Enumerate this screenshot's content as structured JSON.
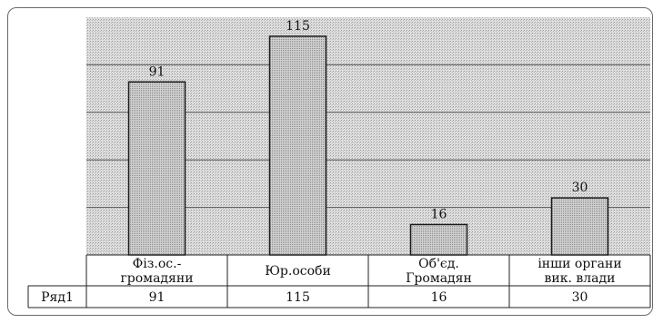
{
  "chart_data": {
    "type": "bar",
    "categories": [
      [
        "Фіз.ос.-",
        "громадяни"
      ],
      [
        "Юр.особи"
      ],
      [
        "Об'єд.",
        "Громадян"
      ],
      [
        "інши органи",
        "вик. влади"
      ]
    ],
    "series": [
      {
        "name": "Ряд1",
        "values": [
          91,
          115,
          16,
          30
        ]
      }
    ],
    "data_labels": [
      "91",
      "115",
      "16",
      "30"
    ],
    "table_values": [
      "91",
      "115",
      "16",
      "30"
    ],
    "ylim": [
      0,
      125
    ],
    "grid": true,
    "data_table": true,
    "colors": {
      "plot_bg": "#d4d4d4",
      "bar": "#c4c4c4",
      "bar_edge": "#1a1a1a",
      "grid": "#555555"
    }
  }
}
